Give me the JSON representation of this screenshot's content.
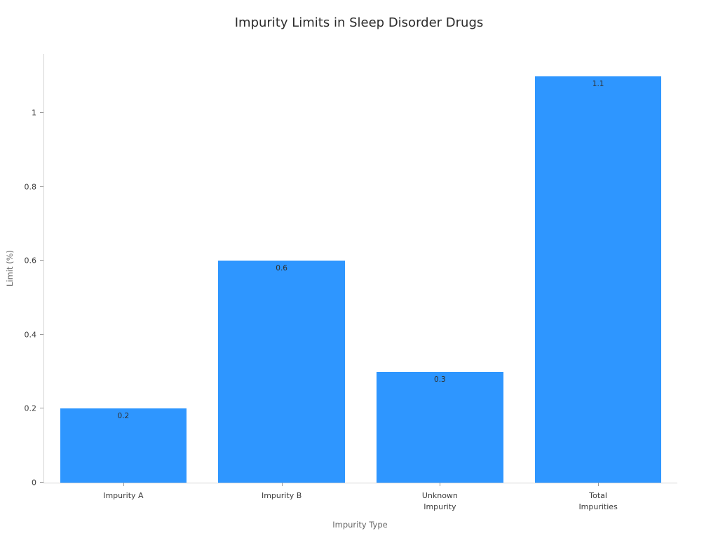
{
  "title": "Impurity Limits in Sleep Disorder Drugs",
  "chart_data": {
    "type": "bar",
    "title": "Impurity Limits in Sleep Disorder Drugs",
    "categories": [
      "Impurity A",
      "Impurity B",
      "Unknown\nImpurity",
      "Total\nImpurities"
    ],
    "values": [
      0.2,
      0.6,
      0.3,
      1.1
    ],
    "value_labels": [
      "0.2",
      "0.6",
      "0.3",
      "1.1"
    ],
    "xlabel": "Impurity Type",
    "ylabel": "Limit (%)",
    "ylim": [
      0,
      1.16
    ],
    "yticks": [
      0,
      0.2,
      0.4,
      0.6,
      0.8,
      1
    ],
    "ytick_labels": [
      "0",
      "0.2",
      "0.4",
      "0.6",
      "0.8",
      "1"
    ],
    "bar_color": "#2e96ff",
    "axis_line_color": "#d4d4d4",
    "grid": false,
    "legend": "none",
    "bar_width_fraction": 0.8
  }
}
